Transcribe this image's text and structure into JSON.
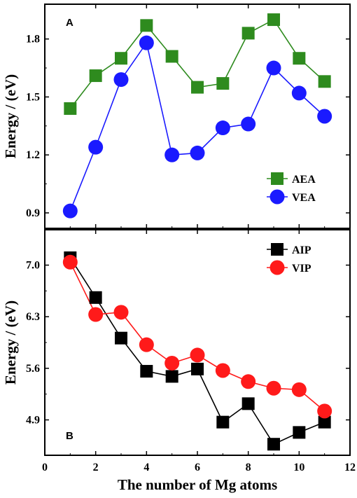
{
  "chart_data": [
    {
      "panel": "A",
      "type": "line",
      "xlabel": "",
      "ylabel": "Energy / (eV)",
      "xlim": [
        0,
        12
      ],
      "ylim": [
        0.82,
        1.98
      ],
      "yticks": [
        "0.9",
        "1.2",
        "1.5",
        "1.8"
      ],
      "x": [
        1,
        2,
        3,
        4,
        5,
        6,
        7,
        8,
        9,
        10,
        11
      ],
      "legend_position": "bottom-right",
      "series": [
        {
          "name": "AEA",
          "marker": "square",
          "color": "#2e8b1e",
          "values": [
            1.44,
            1.61,
            1.7,
            1.87,
            1.71,
            1.55,
            1.57,
            1.83,
            1.9,
            1.7,
            1.58
          ]
        },
        {
          "name": "VEA",
          "marker": "circle",
          "color": "#1a1aff",
          "values": [
            0.91,
            1.24,
            1.59,
            1.78,
            1.2,
            1.21,
            1.34,
            1.36,
            1.65,
            1.52,
            1.4
          ]
        }
      ]
    },
    {
      "panel": "B",
      "type": "line",
      "xlabel": "The number of Mg atoms",
      "ylabel": "Energy / (eV)",
      "xlim": [
        0,
        12
      ],
      "ylim": [
        4.42,
        7.48
      ],
      "xticks": [
        "0",
        "2",
        "4",
        "6",
        "8",
        "10",
        "12"
      ],
      "yticks": [
        "4.9",
        "5.6",
        "6.3",
        "7.0"
      ],
      "x": [
        1,
        2,
        3,
        4,
        5,
        6,
        7,
        8,
        9,
        10,
        11
      ],
      "legend_position": "top-right",
      "series": [
        {
          "name": "AIP",
          "marker": "square",
          "color": "#000000",
          "values": [
            7.1,
            6.56,
            6.01,
            5.56,
            5.49,
            5.59,
            4.87,
            5.12,
            4.57,
            4.73,
            4.87
          ]
        },
        {
          "name": "VIP",
          "marker": "circle",
          "color": "#ff1a1a",
          "values": [
            7.04,
            6.33,
            6.36,
            5.92,
            5.67,
            5.78,
            5.57,
            5.42,
            5.33,
            5.31,
            5.02
          ]
        }
      ]
    }
  ]
}
